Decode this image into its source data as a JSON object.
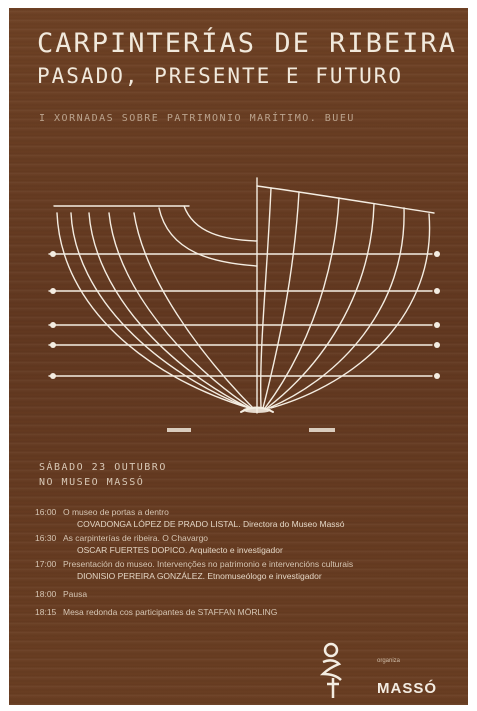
{
  "header": {
    "title_line1": "CARPINTERÍAS DE RIBEIRA",
    "title_line2": "PASADO, PRESENTE E FUTURO",
    "subtitle": "I XORNADAS SOBRE PATRIMONIO MARÍTIMO. BUEU"
  },
  "event": {
    "date": "SÁBADO 23 OUTUBRO",
    "venue": "NO MUSEO MASSÓ"
  },
  "programme": [
    {
      "time": "16:00",
      "title": "O museo de portas a dentro",
      "speaker": "COVADONGA LÓPEZ DE PRADO LISTAL. Directora do Museo Massó"
    },
    {
      "time": "16:30",
      "title": "As carpinterías de ribeira. O Chavargo",
      "speaker": "OSCAR FUERTES DOPICO. Arquitecto e investigador"
    },
    {
      "time": "17:00",
      "title": "Presentación do museo. Intervenções no patrimonio e intervencións culturais",
      "speaker": "DIONISIO PEREIRA GONZÁLEZ. Etnomuseólogo e investigador"
    },
    {
      "time": "18:00",
      "title": "Pausa",
      "speaker": ""
    },
    {
      "time": "18:15",
      "title": "Mesa redonda cos participantes de STAFFAN MÖRLING",
      "speaker": ""
    }
  ],
  "logos": {
    "left_icon": "anchor-rope-logo",
    "right_label": "organiza",
    "right_text": "MASSÓ"
  }
}
